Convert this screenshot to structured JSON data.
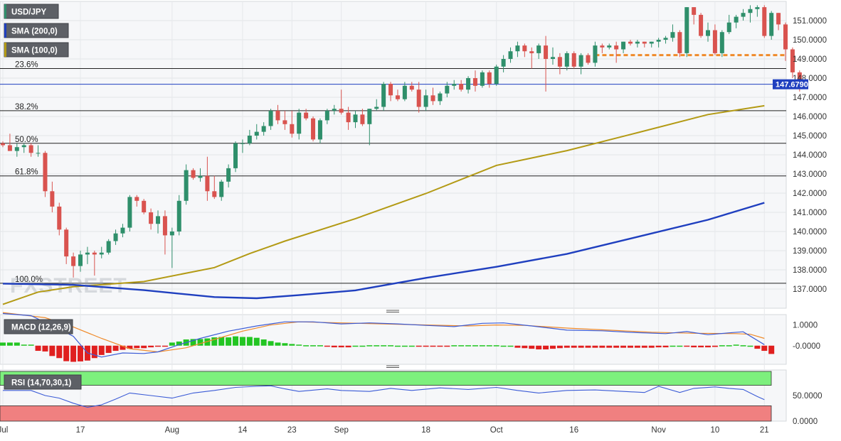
{
  "colors": {
    "up": "#2f8f6b",
    "down": "#d9534f",
    "sma200": "#1f3fbf",
    "sma100": "#b39a14",
    "macd_line": "#3b5bd6",
    "signal_line": "#ef8a2a",
    "hist_pos": "#22c522",
    "hist_neg": "#e01f1f",
    "rsi_line": "#3b5bd6",
    "rsi_overbought": "#7df07d",
    "rsi_oversold": "#f08080",
    "price_tag": "#1f3fbf",
    "resistance": "#ef8a2a"
  },
  "chart_data": {
    "type": "candlestick",
    "symbol": "USD/JPY",
    "price_axis": {
      "ylim": [
        136.0,
        152.0
      ],
      "ticks": [
        "137.0000",
        "138.0000",
        "139.0000",
        "140.0000",
        "141.0000",
        "142.0000",
        "143.0000",
        "144.0000",
        "145.0000",
        "146.0000",
        "147.0000",
        "148.0000",
        "149.0000",
        "150.0000",
        "151.0000"
      ],
      "last_price": "147.6790"
    },
    "x_labels": [
      {
        "label": "Jul",
        "bar": 0
      },
      {
        "label": "17",
        "bar": 11
      },
      {
        "label": "Aug",
        "bar": 24
      },
      {
        "label": "14",
        "bar": 34
      },
      {
        "label": "23",
        "bar": 41
      },
      {
        "label": "Sep",
        "bar": 48
      },
      {
        "label": "18",
        "bar": 60
      },
      {
        "label": "Oct",
        "bar": 70
      },
      {
        "label": "16",
        "bar": 81
      },
      {
        "label": "Nov",
        "bar": 93
      },
      {
        "label": "10",
        "bar": 101
      },
      {
        "label": "21",
        "bar": 108
      }
    ],
    "legend": [
      "USD/JPY",
      "SMA (200,0)",
      "SMA (100,0)"
    ],
    "fib_levels": [
      {
        "label": "23.6%",
        "value": 148.5
      },
      {
        "label": "38.2%",
        "value": 146.3
      },
      {
        "label": "50.0%",
        "value": 144.6
      },
      {
        "label": "61.8%",
        "value": 142.9
      },
      {
        "label": "100.0%",
        "value": 137.3
      }
    ],
    "resistance_level": 149.2,
    "candles": [
      [
        144.6,
        144.7,
        144.4,
        144.5
      ],
      [
        144.5,
        145.1,
        144.2,
        144.2
      ],
      [
        144.2,
        144.6,
        143.9,
        144.4
      ],
      [
        144.4,
        144.6,
        144.1,
        144.5
      ],
      [
        144.5,
        144.6,
        143.9,
        144.1
      ],
      [
        144.1,
        144.5,
        143.9,
        144.1
      ],
      [
        144.1,
        144.2,
        141.8,
        142.1
      ],
      [
        142.1,
        142.6,
        141.0,
        141.3
      ],
      [
        141.3,
        141.5,
        139.8,
        140.1
      ],
      [
        140.1,
        140.2,
        138.3,
        138.7
      ],
      [
        138.7,
        138.9,
        137.6,
        138.2
      ],
      [
        138.2,
        139.0,
        137.9,
        138.8
      ],
      [
        138.8,
        139.2,
        138.3,
        138.9
      ],
      [
        138.9,
        139.0,
        137.7,
        138.8
      ],
      [
        138.8,
        139.2,
        138.6,
        138.9
      ],
      [
        138.9,
        139.6,
        138.8,
        139.5
      ],
      [
        139.5,
        140.1,
        139.3,
        139.9
      ],
      [
        139.9,
        140.4,
        139.7,
        140.2
      ],
      [
        140.2,
        141.9,
        140.0,
        141.8
      ],
      [
        141.8,
        141.9,
        141.3,
        141.6
      ],
      [
        141.6,
        141.7,
        140.9,
        141.0
      ],
      [
        141.0,
        141.2,
        140.1,
        140.4
      ],
      [
        140.4,
        141.1,
        139.9,
        140.8
      ],
      [
        140.8,
        141.1,
        138.8,
        139.8
      ],
      [
        139.8,
        140.2,
        138.1,
        140.0
      ],
      [
        140.0,
        141.9,
        139.8,
        141.6
      ],
      [
        141.6,
        143.5,
        141.4,
        143.2
      ],
      [
        143.2,
        143.3,
        142.7,
        142.8
      ],
      [
        142.8,
        143.3,
        142.6,
        142.9
      ],
      [
        142.9,
        143.9,
        141.6,
        142.1
      ],
      [
        142.1,
        142.9,
        141.7,
        141.8
      ],
      [
        141.8,
        142.7,
        141.6,
        142.6
      ],
      [
        142.6,
        143.5,
        142.3,
        143.3
      ],
      [
        143.3,
        144.7,
        143.1,
        144.6
      ],
      [
        144.6,
        144.8,
        144.1,
        144.6
      ],
      [
        144.6,
        145.3,
        144.5,
        145.0
      ],
      [
        145.0,
        145.6,
        144.8,
        145.2
      ],
      [
        145.2,
        145.7,
        145.0,
        145.5
      ],
      [
        145.5,
        146.4,
        145.3,
        146.3
      ],
      [
        146.3,
        146.6,
        145.6,
        145.8
      ],
      [
        145.8,
        146.3,
        145.3,
        145.6
      ],
      [
        145.6,
        146.3,
        144.9,
        145.1
      ],
      [
        145.1,
        146.4,
        144.8,
        146.2
      ],
      [
        146.2,
        146.4,
        145.8,
        145.9
      ],
      [
        145.9,
        146.0,
        144.7,
        144.8
      ],
      [
        144.8,
        145.9,
        144.6,
        145.8
      ],
      [
        145.8,
        146.4,
        145.6,
        146.3
      ],
      [
        146.3,
        146.6,
        146.1,
        146.4
      ],
      [
        146.4,
        147.4,
        146.1,
        146.2
      ],
      [
        146.2,
        146.5,
        145.3,
        145.7
      ],
      [
        145.7,
        146.3,
        145.4,
        146.1
      ],
      [
        146.1,
        146.4,
        145.5,
        145.6
      ],
      [
        145.6,
        146.4,
        144.5,
        146.4
      ],
      [
        146.4,
        146.9,
        146.3,
        146.5
      ],
      [
        146.5,
        147.8,
        146.3,
        147.7
      ],
      [
        147.7,
        147.8,
        146.8,
        147.1
      ],
      [
        147.1,
        147.4,
        146.8,
        146.9
      ],
      [
        146.9,
        147.8,
        146.8,
        147.6
      ],
      [
        147.6,
        147.8,
        147.3,
        147.4
      ],
      [
        147.4,
        147.8,
        146.2,
        146.5
      ],
      [
        146.5,
        147.4,
        146.3,
        147.1
      ],
      [
        147.1,
        147.5,
        146.6,
        146.8
      ],
      [
        146.8,
        147.3,
        146.6,
        147.2
      ],
      [
        147.2,
        147.8,
        147.0,
        147.6
      ],
      [
        147.6,
        147.9,
        147.4,
        147.7
      ],
      [
        147.7,
        147.9,
        147.3,
        147.4
      ],
      [
        147.4,
        148.1,
        147.2,
        148.0
      ],
      [
        148.0,
        148.4,
        147.3,
        147.6
      ],
      [
        147.6,
        148.4,
        147.5,
        148.3
      ],
      [
        148.3,
        148.4,
        147.5,
        147.7
      ],
      [
        147.7,
        148.7,
        147.6,
        148.6
      ],
      [
        148.6,
        149.2,
        148.3,
        149.0
      ],
      [
        149.0,
        149.6,
        148.8,
        149.4
      ],
      [
        149.4,
        149.9,
        149.1,
        149.7
      ],
      [
        149.7,
        149.8,
        149.1,
        149.4
      ],
      [
        149.4,
        149.6,
        148.5,
        149.3
      ],
      [
        149.3,
        149.8,
        149.0,
        149.7
      ],
      [
        149.7,
        150.2,
        147.3,
        149.0
      ],
      [
        149.0,
        149.6,
        148.7,
        149.1
      ],
      [
        149.1,
        149.3,
        148.2,
        148.6
      ],
      [
        148.6,
        149.4,
        148.4,
        149.3
      ],
      [
        149.3,
        149.4,
        148.5,
        148.6
      ],
      [
        148.6,
        149.3,
        148.2,
        149.2
      ],
      [
        149.2,
        149.3,
        148.7,
        148.8
      ],
      [
        148.8,
        149.9,
        148.6,
        149.7
      ],
      [
        149.7,
        149.8,
        149.3,
        149.6
      ],
      [
        149.6,
        149.8,
        149.5,
        149.7
      ],
      [
        149.7,
        149.9,
        148.8,
        149.5
      ],
      [
        149.5,
        149.9,
        149.3,
        149.9
      ],
      [
        149.9,
        150.0,
        149.7,
        149.8
      ],
      [
        149.8,
        150.0,
        149.6,
        149.9
      ],
      [
        149.9,
        149.9,
        149.6,
        149.8
      ],
      [
        149.8,
        149.9,
        149.6,
        149.9
      ],
      [
        149.9,
        150.1,
        149.6,
        150.0
      ],
      [
        150.0,
        150.2,
        149.8,
        150.1
      ],
      [
        150.1,
        150.8,
        149.9,
        150.4
      ],
      [
        150.4,
        150.5,
        149.1,
        149.3
      ],
      [
        149.3,
        151.7,
        149.1,
        151.7
      ],
      [
        151.7,
        151.7,
        150.8,
        151.3
      ],
      [
        151.3,
        151.4,
        150.1,
        150.2
      ],
      [
        150.2,
        150.9,
        149.9,
        150.5
      ],
      [
        150.5,
        150.8,
        149.2,
        149.3
      ],
      [
        149.3,
        150.5,
        149.1,
        150.4
      ],
      [
        150.4,
        151.3,
        150.3,
        150.9
      ],
      [
        150.9,
        151.3,
        150.6,
        151.2
      ],
      [
        151.2,
        151.6,
        151.0,
        151.4
      ],
      [
        151.4,
        151.8,
        150.9,
        151.6
      ],
      [
        151.6,
        151.8,
        151.2,
        151.7
      ],
      [
        151.7,
        151.8,
        150.1,
        150.2
      ],
      [
        150.2,
        151.5,
        150.0,
        151.4
      ],
      [
        151.4,
        151.4,
        150.5,
        150.8
      ],
      [
        150.8,
        150.9,
        148.9,
        149.5
      ],
      [
        149.5,
        149.6,
        148.0,
        148.3
      ],
      [
        148.3,
        148.4,
        147.3,
        147.7
      ]
    ],
    "sma200": [
      [
        0,
        137.28
      ],
      [
        10,
        137.22
      ],
      [
        20,
        136.94
      ],
      [
        30,
        136.58
      ],
      [
        36,
        136.52
      ],
      [
        42,
        136.68
      ],
      [
        50,
        136.93
      ],
      [
        60,
        137.58
      ],
      [
        70,
        138.16
      ],
      [
        80,
        138.83
      ],
      [
        90,
        139.72
      ],
      [
        100,
        140.61
      ],
      [
        108,
        141.5
      ]
    ],
    "sma100": [
      [
        0,
        136.2
      ],
      [
        5,
        136.84
      ],
      [
        10,
        137.12
      ],
      [
        20,
        137.39
      ],
      [
        30,
        138.12
      ],
      [
        35,
        138.85
      ],
      [
        40,
        139.5
      ],
      [
        50,
        140.67
      ],
      [
        60,
        141.98
      ],
      [
        70,
        143.45
      ],
      [
        80,
        144.22
      ],
      [
        90,
        145.15
      ],
      [
        100,
        146.1
      ],
      [
        108,
        146.56
      ]
    ],
    "macd": {
      "label": "MACD (12,26,9)",
      "ticks": [
        "1.0000",
        "-0.0000"
      ],
      "ylim": [
        -0.9,
        1.5
      ],
      "macd": [
        [
          0,
          1.55
        ],
        [
          4,
          1.45
        ],
        [
          8,
          0.8
        ],
        [
          10,
          0.45
        ],
        [
          12,
          -0.35
        ],
        [
          14,
          -0.55
        ],
        [
          17,
          -0.35
        ],
        [
          20,
          -0.38
        ],
        [
          22,
          -0.3
        ],
        [
          25,
          0.05
        ],
        [
          28,
          0.35
        ],
        [
          32,
          0.7
        ],
        [
          36,
          0.95
        ],
        [
          40,
          1.15
        ],
        [
          44,
          1.15
        ],
        [
          48,
          1.05
        ],
        [
          52,
          1.1
        ],
        [
          56,
          1.05
        ],
        [
          60,
          0.98
        ],
        [
          64,
          0.92
        ],
        [
          68,
          1.08
        ],
        [
          71,
          1.1
        ],
        [
          75,
          0.95
        ],
        [
          80,
          0.75
        ],
        [
          85,
          0.72
        ],
        [
          90,
          0.63
        ],
        [
          94,
          0.58
        ],
        [
          97,
          0.68
        ],
        [
          100,
          0.53
        ],
        [
          103,
          0.62
        ],
        [
          105,
          0.67
        ],
        [
          108,
          0.05
        ]
      ],
      "signal": [
        [
          0,
          1.6
        ],
        [
          6,
          1.35
        ],
        [
          10,
          0.9
        ],
        [
          14,
          0.35
        ],
        [
          18,
          -0.15
        ],
        [
          22,
          -0.3
        ],
        [
          26,
          -0.1
        ],
        [
          30,
          0.3
        ],
        [
          34,
          0.7
        ],
        [
          38,
          1.0
        ],
        [
          42,
          1.15
        ],
        [
          48,
          1.1
        ],
        [
          54,
          1.05
        ],
        [
          60,
          1.0
        ],
        [
          66,
          0.95
        ],
        [
          70,
          1.0
        ],
        [
          74,
          0.98
        ],
        [
          80,
          0.85
        ],
        [
          86,
          0.75
        ],
        [
          92,
          0.65
        ],
        [
          98,
          0.6
        ],
        [
          104,
          0.58
        ],
        [
          106,
          0.55
        ],
        [
          108,
          0.35
        ]
      ],
      "hist": [
        0.15,
        0.15,
        0.15,
        0.05,
        0.05,
        -0.25,
        -0.28,
        -0.5,
        -0.6,
        -0.75,
        -0.78,
        -0.76,
        -0.72,
        -0.6,
        -0.45,
        -0.35,
        -0.25,
        -0.2,
        -0.15,
        -0.12,
        -0.12,
        -0.08,
        -0.05,
        -0.05,
        0.15,
        0.2,
        0.3,
        0.32,
        0.32,
        0.35,
        0.4,
        0.42,
        0.4,
        0.45,
        0.42,
        0.42,
        0.38,
        0.3,
        0.22,
        0.15,
        0.12,
        0.08,
        0.05,
        0.02,
        0.02,
        0.02,
        -0.05,
        -0.08,
        -0.08,
        -0.08,
        0.0,
        0.0,
        0.02,
        0.02,
        0.02,
        0.02,
        0.0,
        0.0,
        0.0,
        -0.05,
        -0.05,
        -0.05,
        -0.05,
        -0.05,
        0.02,
        0.02,
        0.02,
        0.02,
        0.02,
        0.02,
        0.02,
        0.0,
        0.0,
        -0.1,
        -0.12,
        -0.15,
        -0.18,
        -0.18,
        -0.15,
        -0.12,
        -0.1,
        -0.1,
        -0.1,
        -0.1,
        -0.1,
        -0.1,
        -0.1,
        -0.1,
        -0.1,
        -0.1,
        -0.1,
        -0.1,
        -0.1,
        -0.08,
        -0.08,
        0.0,
        0.0,
        -0.05,
        -0.08,
        -0.08,
        -0.08,
        -0.06,
        0.02,
        0.02,
        0.05,
        0.02,
        0.0,
        -0.15,
        -0.25,
        -0.4
      ]
    },
    "rsi": {
      "label": "RSI (14,70,30,1)",
      "ticks": [
        "50.0000",
        "0.0000"
      ],
      "ylim": [
        0,
        100
      ],
      "overbought": 70,
      "oversold": 30,
      "values": [
        [
          0,
          60
        ],
        [
          4,
          60
        ],
        [
          6,
          50
        ],
        [
          8,
          45
        ],
        [
          10,
          35
        ],
        [
          12,
          27
        ],
        [
          14,
          32
        ],
        [
          16,
          43
        ],
        [
          18,
          55
        ],
        [
          21,
          50
        ],
        [
          24,
          45
        ],
        [
          27,
          55
        ],
        [
          30,
          60
        ],
        [
          33,
          66
        ],
        [
          36,
          68
        ],
        [
          38,
          69
        ],
        [
          40,
          63
        ],
        [
          42,
          58
        ],
        [
          46,
          63
        ],
        [
          48,
          60
        ],
        [
          52,
          58
        ],
        [
          55,
          64
        ],
        [
          58,
          60
        ],
        [
          62,
          65
        ],
        [
          66,
          62
        ],
        [
          70,
          66
        ],
        [
          73,
          60
        ],
        [
          76,
          55
        ],
        [
          80,
          60
        ],
        [
          84,
          61
        ],
        [
          88,
          58
        ],
        [
          91,
          56
        ],
        [
          93,
          68
        ],
        [
          96,
          56
        ],
        [
          98,
          64
        ],
        [
          101,
          67
        ],
        [
          103,
          64
        ],
        [
          105,
          62
        ],
        [
          107,
          48
        ],
        [
          108,
          42
        ]
      ]
    }
  }
}
